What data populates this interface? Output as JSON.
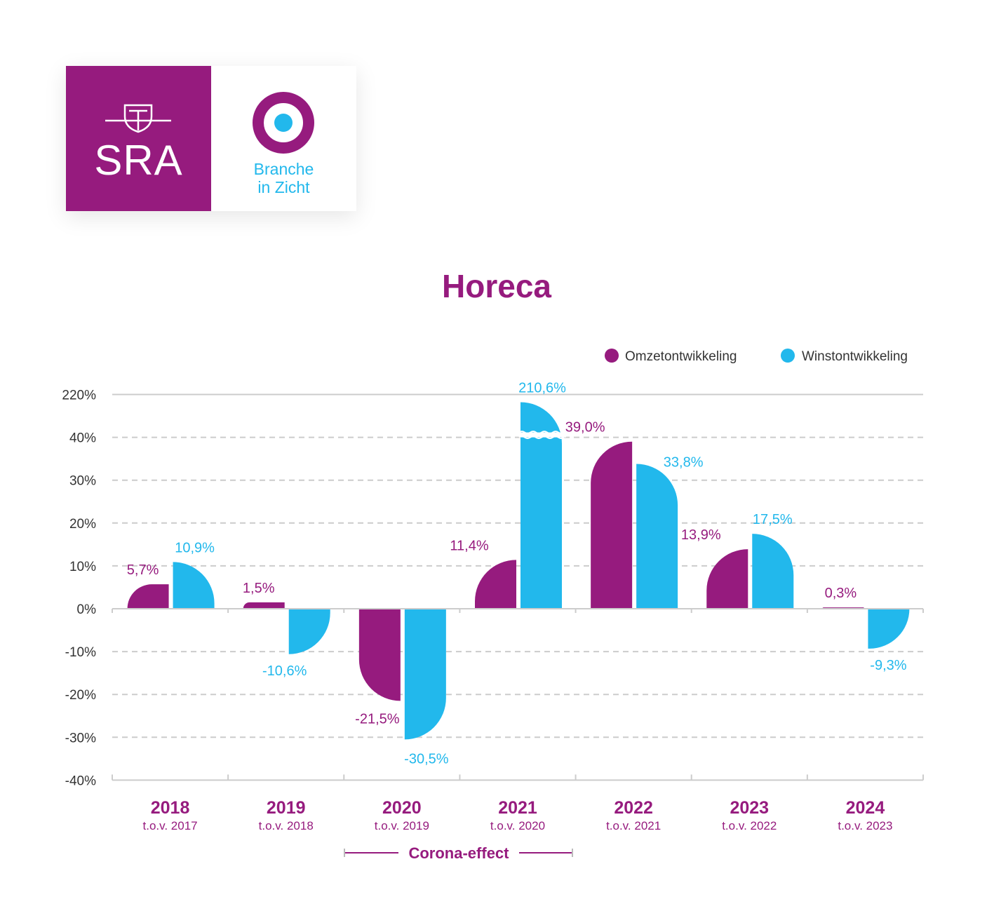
{
  "logo": {
    "brand": "SRA",
    "product_line1": "Branche",
    "product_line2": "in Zicht"
  },
  "colors": {
    "omzet": "#961b7e",
    "winst": "#22b8ec",
    "grid": "#cccccc",
    "axis_text": "#333333"
  },
  "chart_data": {
    "type": "bar",
    "title": "Horeca",
    "categories": [
      "2018",
      "2019",
      "2020",
      "2021",
      "2022",
      "2023",
      "2024"
    ],
    "category_sublabels": [
      "t.o.v. 2017",
      "t.o.v. 2018",
      "t.o.v. 2019",
      "t.o.v. 2020",
      "t.o.v. 2021",
      "t.o.v. 2022",
      "t.o.v. 2023"
    ],
    "series": [
      {
        "name": "Omzetontwikkeling",
        "values": [
          5.7,
          1.5,
          -21.5,
          11.4,
          39.0,
          13.9,
          0.3
        ],
        "labels": [
          "5,7%",
          "1,5%",
          "-21,5%",
          "11,4%",
          "39,0%",
          "13,9%",
          "0,3%"
        ]
      },
      {
        "name": "Winstontwikkeling",
        "values": [
          10.9,
          -10.6,
          -30.5,
          210.6,
          33.8,
          17.5,
          -9.3
        ],
        "labels": [
          "10,9%",
          "-10,6%",
          "-30,5%",
          "210,6%",
          "33,8%",
          "17,5%",
          "-9,3%"
        ]
      }
    ],
    "y_ticks": [
      "220%",
      "40%",
      "30%",
      "20%",
      "10%",
      "0%",
      "-10%",
      "-20%",
      "-30%",
      "-40%"
    ],
    "y_tick_values": [
      220,
      40,
      30,
      20,
      10,
      0,
      -10,
      -20,
      -30,
      -40
    ],
    "axis_break": "between 40% and 220%",
    "grid": true,
    "legend_position": "top-right",
    "annotation": {
      "text": "Corona-effect",
      "spans": [
        "2020",
        "2021"
      ]
    }
  }
}
